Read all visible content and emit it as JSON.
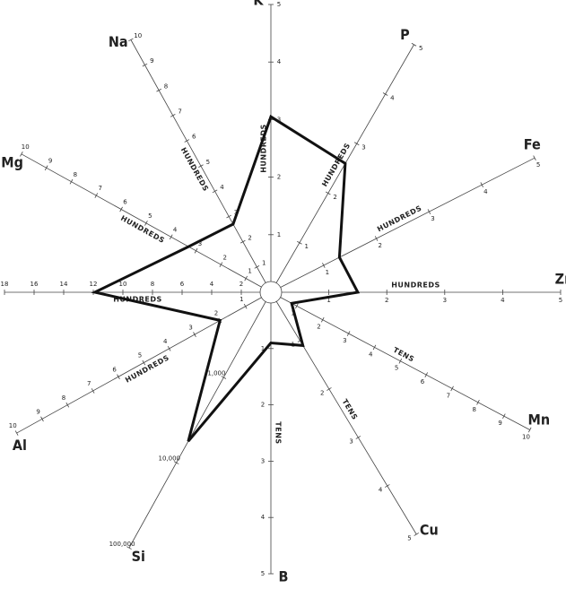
{
  "chart_data": {
    "type": "radar",
    "color": "#111111",
    "axes": [
      {
        "label": "K",
        "unit": "HUNDREDS",
        "lim": [
          0,
          5
        ],
        "ticks": [
          1,
          2,
          3,
          4,
          5
        ],
        "value": 3.05
      },
      {
        "label": "P",
        "unit": "HUNDREDS",
        "lim": [
          0,
          5
        ],
        "ticks": [
          1,
          2,
          3,
          4,
          5
        ],
        "value": 2.6
      },
      {
        "label": "Fe",
        "unit": "HUNDREDS",
        "lim": [
          0,
          5
        ],
        "ticks": [
          1,
          2,
          3,
          4,
          5
        ],
        "value": 1.3
      },
      {
        "label": "Zn",
        "unit": "HUNDREDS",
        "lim": [
          0,
          5
        ],
        "ticks": [
          1,
          2,
          3,
          4,
          5
        ],
        "value": 1.5
      },
      {
        "label": "Mn",
        "unit": "TENS",
        "lim": [
          0,
          10
        ],
        "ticks": [
          1,
          2,
          3,
          4,
          5,
          6,
          7,
          8,
          9,
          10
        ],
        "value": 0.8
      },
      {
        "label": "Cu",
        "unit": "TENS",
        "lim": [
          0,
          5
        ],
        "ticks": [
          1,
          2,
          3,
          4,
          5
        ],
        "value": 1.1
      },
      {
        "label": "B",
        "unit": "TENS",
        "lim": [
          0,
          5
        ],
        "ticks": [
          1,
          2,
          3,
          4,
          5
        ],
        "value": 0.9
      },
      {
        "label": "Si",
        "scale": "log",
        "lim": [
          100,
          100000
        ],
        "ticks": [
          {
            "value": 1000,
            "label": "1,000"
          },
          {
            "value": 10000,
            "label": "10,000"
          },
          {
            "value": 100000,
            "label": "100,000"
          }
        ],
        "value": 5600
      },
      {
        "label": "Al",
        "unit": "HUNDREDS",
        "lim": [
          0,
          10
        ],
        "ticks": [
          1,
          2,
          3,
          4,
          5,
          6,
          7,
          8,
          9,
          10
        ],
        "value": 2.0
      },
      {
        "unit": "HUNDREDS",
        "lim": [
          0,
          18
        ],
        "ticks": [
          2,
          4,
          6,
          8,
          10,
          12,
          14,
          16,
          18
        ],
        "value": 11.9
      },
      {
        "label": "Mg",
        "unit": "HUNDREDS",
        "lim": [
          0,
          10
        ],
        "ticks": [
          1,
          2,
          3,
          4,
          5,
          6,
          7,
          8,
          9,
          10
        ],
        "value": 3.3
      },
      {
        "label": "Na",
        "unit": "HUNDREDS",
        "lim": [
          0,
          10
        ],
        "ticks": [
          1,
          2,
          3,
          4,
          5,
          6,
          7,
          8,
          9,
          10
        ],
        "value": 2.7
      }
    ]
  }
}
